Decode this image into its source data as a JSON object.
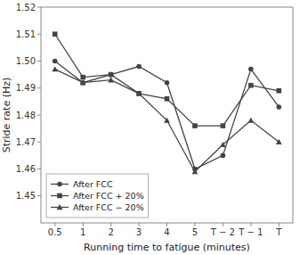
{
  "chart_data": {
    "type": "line",
    "xlabel": "Running time to fatigue (minutes)",
    "ylabel": "Stride rate (Hz)",
    "categories": [
      "0.5",
      "1",
      "2",
      "3",
      "4",
      "5",
      "T − 2",
      "T − 1",
      "T"
    ],
    "series": [
      {
        "name": "After FCC",
        "color": "#444444",
        "marker": "circle",
        "values": [
          1.5,
          1.492,
          1.495,
          1.498,
          1.492,
          1.46,
          1.465,
          1.497,
          1.483
        ]
      },
      {
        "name": "After FCC + 20%",
        "color": "#444444",
        "marker": "square",
        "values": [
          1.51,
          1.494,
          1.495,
          1.488,
          1.486,
          1.476,
          1.476,
          1.491,
          1.489
        ]
      },
      {
        "name": "After FCC − 20%",
        "color": "#444444",
        "marker": "triangle",
        "values": [
          1.497,
          1.492,
          1.493,
          1.488,
          1.478,
          1.459,
          1.469,
          1.478,
          1.47
        ]
      }
    ],
    "ylim": [
      1.44,
      1.52
    ],
    "yticks": [
      1.45,
      1.46,
      1.47,
      1.48,
      1.49,
      {
        "value": 1.5,
        "label": "1.50"
      },
      1.51,
      1.52
    ],
    "grid": false,
    "legend": "lower left"
  }
}
